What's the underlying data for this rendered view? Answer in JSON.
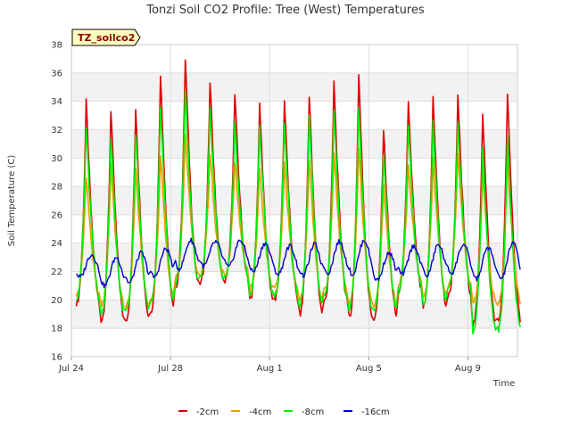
{
  "chart_data": {
    "type": "line",
    "title": "Tonzi Soil CO2 Profile: Tree (West) Temperatures",
    "xlabel": "Time",
    "ylabel": "Soil Temperature (C)",
    "site_tag": "TZ_soilco2",
    "ylim": [
      16,
      38
    ],
    "yticks": [
      16,
      18,
      20,
      22,
      24,
      26,
      28,
      30,
      32,
      34,
      36,
      38
    ],
    "x_ticks": [
      {
        "label": "Jul 24",
        "day": 0
      },
      {
        "label": "Jul 28",
        "day": 4
      },
      {
        "label": "Aug 1",
        "day": 8
      },
      {
        "label": "Aug 5",
        "day": 12
      },
      {
        "label": "Aug 9",
        "day": 16
      }
    ],
    "x_range_days": [
      0,
      18
    ],
    "x_data_start_date": "Jul 24",
    "grid": true,
    "legend_position": "bottom",
    "series": [
      {
        "name": "-2cm",
        "color": "#dd0000",
        "daily_max": [
          34.2,
          33.7,
          33.8,
          36.3,
          37.3,
          35.6,
          34.7,
          33.9,
          34.3,
          34.8,
          35.6,
          36.2,
          32.3,
          34.1,
          34.6,
          34.5,
          33.5,
          34.8
        ],
        "daily_min": [
          19.8,
          18.6,
          18.7,
          19.3,
          21.0,
          21.2,
          21.4,
          20.1,
          20.1,
          19.0,
          19.9,
          18.8,
          18.7,
          20.6,
          19.5,
          20.3,
          18.3,
          18.5
        ]
      },
      {
        "name": "-4cm",
        "color": "#e8a000",
        "daily_max": [
          29.0,
          29.8,
          29.4,
          30.4,
          31.8,
          30.6,
          30.0,
          29.5,
          29.7,
          30.1,
          30.7,
          31.0,
          28.2,
          29.7,
          30.0,
          30.3,
          29.1,
          29.9
        ],
        "daily_min": [
          20.4,
          19.6,
          19.5,
          20.1,
          21.6,
          21.8,
          21.9,
          20.8,
          20.8,
          20.0,
          20.6,
          19.8,
          19.6,
          21.2,
          20.4,
          21.0,
          19.8,
          19.7
        ]
      },
      {
        "name": "-8cm",
        "color": "#00ee00",
        "daily_max": [
          32.4,
          31.8,
          32.0,
          34.0,
          35.0,
          33.8,
          32.6,
          32.5,
          32.8,
          33.2,
          33.6,
          33.8,
          30.4,
          32.6,
          32.8,
          32.6,
          31.1,
          31.8
        ],
        "daily_min": [
          20.2,
          19.0,
          19.2,
          19.8,
          21.2,
          21.6,
          21.6,
          20.4,
          20.4,
          19.6,
          20.3,
          19.4,
          19.2,
          20.8,
          19.8,
          20.8,
          17.8,
          17.9
        ]
      },
      {
        "name": "-16cm",
        "color": "#0000cc",
        "daily_max": [
          23.2,
          23.0,
          23.3,
          23.6,
          24.2,
          24.1,
          24.2,
          24.0,
          23.8,
          23.9,
          24.1,
          24.2,
          23.3,
          23.8,
          23.9,
          23.9,
          23.7,
          24.0
        ],
        "daily_min": [
          21.6,
          21.0,
          21.2,
          21.6,
          22.2,
          22.4,
          22.3,
          22.0,
          21.8,
          21.7,
          21.9,
          21.8,
          21.4,
          21.8,
          21.7,
          21.9,
          21.5,
          21.5
        ]
      }
    ]
  }
}
